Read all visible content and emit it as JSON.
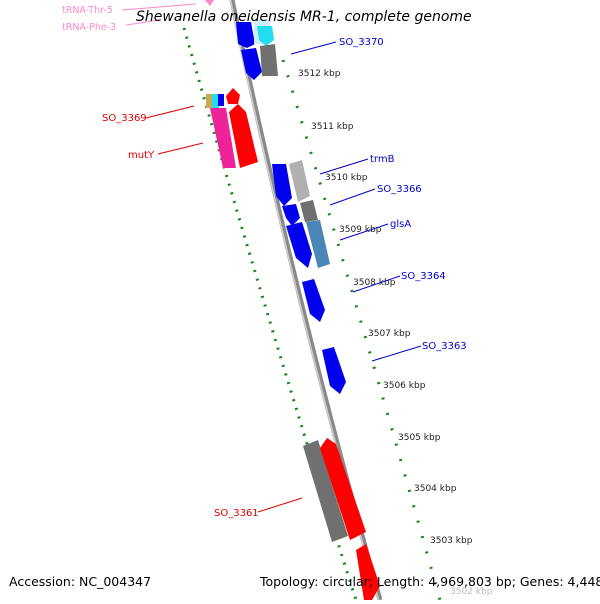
{
  "title": "Shewanella oneidensis MR-1, complete genome",
  "footer": {
    "accession": "Accession: NC_004347",
    "summary": "Topology: circular; Length: 4,969,803 bp; Genes: 4,448"
  },
  "ticks": [
    "3512 kbp",
    "3511 kbp",
    "3510 kbp",
    "3509 kbp",
    "3508 kbp",
    "3507 kbp",
    "3506 kbp",
    "3505 kbp",
    "3504 kbp",
    "3503 kbp",
    "3502 kbp"
  ],
  "gene_labels": {
    "trna_thr": "tRNA-Thr-5",
    "trna_phe": "tRNA-Phe-3",
    "so_3370": "SO_3370",
    "so_3369": "SO_3369",
    "muty": "mutY",
    "trmb": "trmB",
    "so_3366": "SO_3366",
    "glsa": "glsA",
    "so_3364": "SO_3364",
    "so_3363": "SO_3363",
    "so_3361": "SO_3361"
  },
  "colors": {
    "forward_label": "#0000cc",
    "reverse_label": "#e00000",
    "trna": "#ff88cc",
    "gene_blue": "#0000ee",
    "gene_red": "#ff0000",
    "gene_magenta": "#ee2299",
    "gene_gray": "#707070",
    "gene_cyan": "#22ddee",
    "gene_steel": "#4a86b8",
    "backbone": "#888888",
    "tick_dots": "#118811"
  }
}
